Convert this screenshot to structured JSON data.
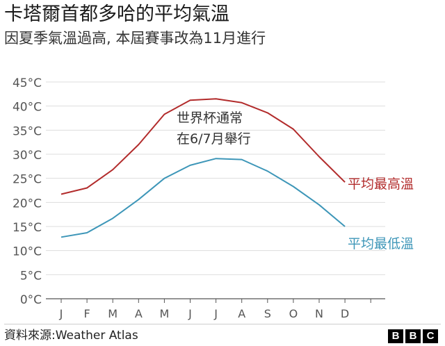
{
  "header": {
    "title": "卡塔爾首都多哈的平均氣溫",
    "subtitle": "因夏季氣溫過高, 本屆賽事改為11月進行"
  },
  "chart_data": {
    "type": "line",
    "categories": [
      "J",
      "F",
      "M",
      "A",
      "M",
      "J",
      "J",
      "A",
      "S",
      "O",
      "N",
      "D"
    ],
    "y_ticks": [
      "0°C",
      "5°C",
      "10°C",
      "15°C",
      "20°C",
      "25°C",
      "30°C",
      "35°C",
      "40°C",
      "45°C"
    ],
    "ylim": [
      0,
      45
    ],
    "grid": true,
    "series": [
      {
        "name": "平均最高溫",
        "color": "#b22b2b",
        "values": [
          21.7,
          23.0,
          26.8,
          32.0,
          38.3,
          41.2,
          41.5,
          40.7,
          38.6,
          35.2,
          29.5,
          24.2
        ]
      },
      {
        "name": "平均最低溫",
        "color": "#3d96b8",
        "values": [
          12.8,
          13.7,
          16.7,
          20.6,
          25.0,
          27.7,
          29.1,
          28.9,
          26.5,
          23.3,
          19.5,
          15.0
        ]
      }
    ],
    "annotation": {
      "line1": "世界杯通常",
      "line2": "在6/7月舉行"
    }
  },
  "footer": {
    "source": "資料來源:Weather Atlas",
    "logo": [
      "B",
      "B",
      "C"
    ]
  }
}
